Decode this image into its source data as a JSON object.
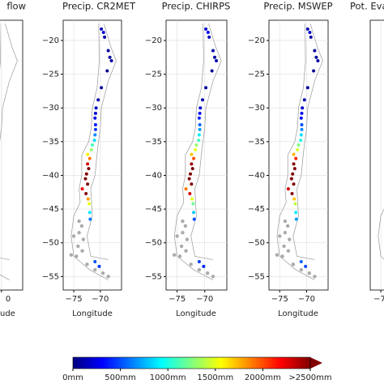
{
  "chart_data": [
    {
      "type": "scatter",
      "title": "flow",
      "xlabel": "ude",
      "xlim": [
        -77,
        -66
      ],
      "ylim": [
        -57,
        -17
      ],
      "xticks": [
        {
          "value": -70,
          "label": "0"
        }
      ],
      "yticks": [],
      "grid": true
    },
    {
      "type": "scatter",
      "title": "Precip. CR2MET",
      "xlabel": "Longitude",
      "xlim": [
        -77,
        -66
      ],
      "ylim": [
        -57,
        -17
      ],
      "xticks": [
        {
          "value": -75,
          "label": "−75"
        },
        {
          "value": -70,
          "label": "−70"
        }
      ],
      "yticks": [
        {
          "value": -20,
          "label": "−20"
        },
        {
          "value": -25,
          "label": "−25"
        },
        {
          "value": -30,
          "label": "−30"
        },
        {
          "value": -35,
          "label": "−35"
        },
        {
          "value": -40,
          "label": "−40"
        },
        {
          "value": -45,
          "label": "−45"
        },
        {
          "value": -50,
          "label": "−50"
        },
        {
          "value": -55,
          "label": "−55"
        }
      ],
      "grid": true,
      "points": {
        "x": [
          -69.8,
          -69.4,
          -69.2,
          -68.5,
          -68.2,
          -67.9,
          -68.7,
          -69.8,
          -70.4,
          -70.8,
          -70.9,
          -71.0,
          -70.9,
          -70.9,
          -71.0,
          -71.1,
          -71.5,
          -71.7,
          -72.4,
          -72.0,
          -72.4,
          -72.2,
          -72.6,
          -72.8,
          -72.4,
          -73.4,
          -72.7,
          -72.3,
          -72.1,
          -72.0,
          -71.9,
          -71.0,
          -70.2
        ],
        "y": [
          -18.3,
          -18.8,
          -19.5,
          -21.5,
          -22.5,
          -23.0,
          -24.5,
          -27.0,
          -28.8,
          -30.0,
          -30.8,
          -31.5,
          -32.5,
          -33.2,
          -34.0,
          -34.8,
          -35.5,
          -36.2,
          -36.9,
          -37.5,
          -38.3,
          -39.0,
          -39.8,
          -40.5,
          -41.3,
          -42.0,
          -42.7,
          -43.5,
          -44.2,
          -45.5,
          -46.5,
          -52.8,
          -53.5
        ],
        "values": [
          150,
          250,
          100,
          80,
          60,
          100,
          40,
          60,
          90,
          150,
          200,
          260,
          380,
          450,
          650,
          850,
          1100,
          1300,
          1600,
          1900,
          2300,
          2600,
          2700,
          2800,
          2700,
          2200,
          2600,
          1800,
          1500,
          900,
          600,
          500,
          450
        ]
      },
      "gray_points": {
        "x": [
          -73.5,
          -74.0,
          -73.2,
          -74.2,
          -73.4,
          -74.5,
          -72.5,
          -71.0,
          -69.5,
          -74.0,
          -75.0,
          -75.5,
          -68.5
        ],
        "y": [
          -47.5,
          -48.5,
          -49.5,
          -50.5,
          -51.2,
          -52.0,
          -53.2,
          -54.0,
          -54.5,
          -46.8,
          -49.0,
          -51.8,
          -55.0
        ],
        "color": "#aaaaaa"
      }
    },
    {
      "type": "scatter",
      "title": "Precip. CHIRPS",
      "xlabel": "Longitude",
      "xlim": [
        -77,
        -66
      ],
      "ylim": [
        -57,
        -17
      ],
      "xticks": [
        {
          "value": -75,
          "label": "−75"
        },
        {
          "value": -70,
          "label": "−70"
        }
      ],
      "yticks": [
        {
          "value": -20,
          "label": "−20"
        },
        {
          "value": -25,
          "label": "−25"
        },
        {
          "value": -30,
          "label": "−30"
        },
        {
          "value": -35,
          "label": "−35"
        },
        {
          "value": -40,
          "label": "−40"
        },
        {
          "value": -45,
          "label": "−45"
        },
        {
          "value": -50,
          "label": "−50"
        },
        {
          "value": -55,
          "label": "−55"
        }
      ],
      "grid": true,
      "points": {
        "x": [
          -69.8,
          -69.4,
          -69.2,
          -68.5,
          -68.2,
          -67.9,
          -68.7,
          -69.8,
          -70.4,
          -70.8,
          -70.9,
          -71.0,
          -70.9,
          -70.9,
          -71.0,
          -71.1,
          -71.5,
          -71.7,
          -72.4,
          -72.0,
          -72.4,
          -72.2,
          -72.6,
          -72.8,
          -72.4,
          -73.4,
          -72.7,
          -72.3,
          -72.1,
          -72.0,
          -71.9,
          -71.0,
          -70.2
        ],
        "y": [
          -18.3,
          -18.8,
          -19.5,
          -21.5,
          -22.5,
          -23.0,
          -24.5,
          -27.0,
          -28.8,
          -30.0,
          -30.8,
          -31.5,
          -32.5,
          -33.2,
          -34.0,
          -34.8,
          -35.5,
          -36.2,
          -36.9,
          -37.5,
          -38.3,
          -39.0,
          -39.8,
          -40.5,
          -41.3,
          -42.0,
          -42.7,
          -43.5,
          -44.2,
          -45.5,
          -46.5,
          -52.8,
          -53.5
        ],
        "values": [
          200,
          300,
          150,
          100,
          80,
          120,
          50,
          80,
          120,
          200,
          300,
          400,
          550,
          700,
          900,
          1100,
          1300,
          1500,
          1700,
          2000,
          2400,
          2500,
          2600,
          2700,
          2500,
          1900,
          2300,
          1500,
          1200,
          800,
          500,
          450,
          400
        ]
      },
      "gray_points": {
        "x": [
          -73.5,
          -74.0,
          -73.2,
          -74.2,
          -73.4,
          -74.5,
          -72.5,
          -71.0,
          -69.5,
          -74.0,
          -75.0,
          -75.5,
          -68.5
        ],
        "y": [
          -47.5,
          -48.5,
          -49.5,
          -50.5,
          -51.2,
          -52.0,
          -53.2,
          -54.0,
          -54.5,
          -46.8,
          -49.0,
          -51.8,
          -55.0
        ],
        "color": "#aaaaaa"
      }
    },
    {
      "type": "scatter",
      "title": "Precip. MSWEP",
      "xlabel": "Longitude",
      "xlim": [
        -77,
        -66
      ],
      "ylim": [
        -57,
        -17
      ],
      "xticks": [
        {
          "value": -75,
          "label": "−75"
        },
        {
          "value": -70,
          "label": "−70"
        }
      ],
      "yticks": [
        {
          "value": -20,
          "label": "−20"
        },
        {
          "value": -25,
          "label": "−25"
        },
        {
          "value": -30,
          "label": "−30"
        },
        {
          "value": -35,
          "label": "−35"
        },
        {
          "value": -40,
          "label": "−40"
        },
        {
          "value": -45,
          "label": "−45"
        },
        {
          "value": -50,
          "label": "−50"
        },
        {
          "value": -55,
          "label": "−55"
        }
      ],
      "grid": true,
      "points": {
        "x": [
          -69.8,
          -69.4,
          -69.2,
          -68.5,
          -68.2,
          -67.9,
          -68.7,
          -69.8,
          -70.4,
          -70.8,
          -70.9,
          -71.0,
          -70.9,
          -70.9,
          -71.0,
          -71.1,
          -71.5,
          -71.7,
          -72.4,
          -72.0,
          -72.4,
          -72.2,
          -72.6,
          -72.8,
          -72.4,
          -73.4,
          -72.7,
          -72.3,
          -72.1,
          -72.0,
          -71.9,
          -71.0,
          -70.2
        ],
        "y": [
          -18.3,
          -18.8,
          -19.5,
          -21.5,
          -22.5,
          -23.0,
          -24.5,
          -27.0,
          -28.8,
          -30.0,
          -30.8,
          -31.5,
          -32.5,
          -33.2,
          -34.0,
          -34.8,
          -35.5,
          -36.2,
          -36.9,
          -37.5,
          -38.3,
          -39.0,
          -39.8,
          -40.5,
          -41.3,
          -42.0,
          -42.7,
          -43.5,
          -44.2,
          -45.5,
          -46.5,
          -52.8,
          -53.5
        ],
        "values": [
          120,
          200,
          90,
          70,
          50,
          90,
          40,
          70,
          110,
          180,
          260,
          350,
          500,
          650,
          850,
          1000,
          1250,
          1450,
          1750,
          2100,
          2500,
          2700,
          2800,
          2900,
          2700,
          2300,
          2500,
          1700,
          1400,
          900,
          700,
          550,
          500
        ]
      },
      "gray_points": {
        "x": [
          -73.5,
          -74.0,
          -73.2,
          -74.2,
          -73.4,
          -74.5,
          -72.5,
          -71.0,
          -69.5,
          -74.0,
          -75.0,
          -75.5,
          -68.5
        ],
        "y": [
          -47.5,
          -48.5,
          -49.5,
          -50.5,
          -51.2,
          -52.0,
          -53.2,
          -54.0,
          -54.5,
          -46.8,
          -49.0,
          -51.8,
          -55.0
        ],
        "color": "#aaaaaa"
      }
    },
    {
      "type": "scatter",
      "title": "Pot. Eva",
      "xlim": [
        -77,
        -66
      ],
      "ylim": [
        -57,
        -17
      ],
      "xticks": [
        {
          "value": -75,
          "label": "−7"
        }
      ],
      "yticks": [],
      "grid": true
    },
    {
      "type": "colorbar",
      "clim": [
        0,
        2500
      ],
      "colormap": "jet",
      "extend": "max",
      "ticks": [
        {
          "value": 0,
          "label": "0mm"
        },
        {
          "value": 500,
          "label": "500mm"
        },
        {
          "value": 1000,
          "label": "1000mm"
        },
        {
          "value": 1500,
          "label": "1500mm"
        },
        {
          "value": 2000,
          "label": "2000mm"
        },
        {
          "value": 2500,
          "label": ">2500mm"
        }
      ]
    }
  ]
}
